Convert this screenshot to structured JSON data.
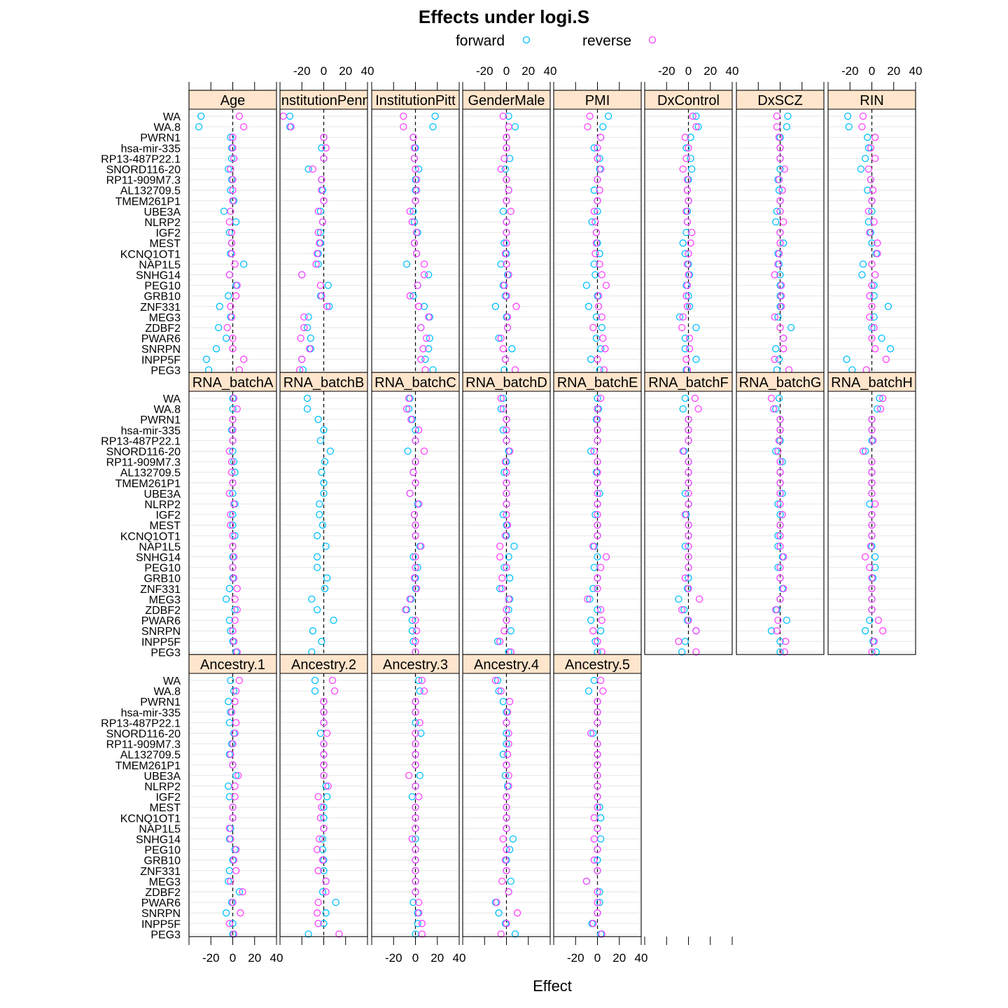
{
  "chart_data": {
    "type": "scatter",
    "title": "Effects under logi.S",
    "xlabel": "Effect",
    "ylabel": "",
    "xlim": [
      -40,
      40
    ],
    "xticks": [
      -20,
      0,
      20,
      40
    ],
    "reference_line_x": 0,
    "legend": {
      "placement": "top",
      "items": [
        {
          "name": "forward",
          "color": "#00bfff"
        },
        {
          "name": "reverse",
          "color": "#ff40ff"
        }
      ]
    },
    "grid": "horizontal lines per gene",
    "genes": [
      "WA",
      "WA.8",
      "PWRN1",
      "hsa-mir-335",
      "RP13-487P22.1",
      "SNORD116-20",
      "RP11-909M7.3",
      "AL132709.5",
      "TMEM261P1",
      "UBE3A",
      "NLRP2",
      "IGF2",
      "MEST",
      "KCNQ1OT1",
      "NAP1L5",
      "SNHG14",
      "PEG10",
      "GRB10",
      "ZNF331",
      "MEG3",
      "ZDBF2",
      "PWAR6",
      "SNRPN",
      "INPP5F",
      "PEG3"
    ],
    "panels": [
      {
        "name": "Age",
        "forward": [
          -29,
          -31,
          -2,
          -1,
          -1,
          -4,
          -1,
          -2,
          1,
          -8,
          3,
          -3,
          -1,
          -2,
          10,
          -3,
          3,
          -4,
          -12,
          -2,
          -13,
          -6,
          -15,
          -24,
          -22
        ],
        "reverse": [
          6,
          10,
          0,
          0,
          1,
          -2,
          0,
          0,
          0,
          -2,
          -3,
          -1,
          -1,
          -1,
          2,
          -3,
          4,
          3,
          -2,
          -1,
          -5,
          0,
          0,
          10,
          6
        ]
      },
      {
        "name": "InstitutionPenn",
        "forward": [
          -31,
          -31,
          0,
          -2,
          0,
          -14,
          -2,
          -1,
          0,
          -3,
          -1,
          -3,
          -3,
          -5,
          -5,
          -20,
          4,
          -3,
          5,
          -14,
          -15,
          -12,
          -12,
          -20,
          -19
        ],
        "reverse": [
          -37,
          -30,
          0,
          2,
          0,
          -10,
          -2,
          -2,
          0,
          -5,
          -1,
          -5,
          -4,
          -6,
          -7,
          -20,
          -3,
          -2,
          3,
          -18,
          -18,
          -21,
          -13,
          -20,
          -22
        ]
      },
      {
        "name": "InstitutionPitt",
        "forward": [
          18,
          16,
          -2,
          0,
          -1,
          3,
          0,
          0,
          0,
          -2,
          -1,
          2,
          -1,
          1,
          -8,
          12,
          2,
          -2,
          8,
          13,
          5,
          13,
          12,
          9,
          16
        ],
        "reverse": [
          -11,
          -11,
          -2,
          -1,
          -1,
          0,
          1,
          1,
          0,
          -5,
          -3,
          1,
          -1,
          1,
          8,
          8,
          2,
          -5,
          3,
          12,
          5,
          10,
          7,
          5,
          9
        ]
      },
      {
        "name": "GenderMale",
        "forward": [
          2,
          8,
          0,
          0,
          3,
          -1,
          0,
          2,
          0,
          -3,
          0,
          0,
          -2,
          0,
          -5,
          1,
          -3,
          -1,
          -10,
          0,
          1,
          -7,
          5,
          -1,
          -2
        ],
        "reverse": [
          -3,
          2,
          0,
          0,
          -2,
          -5,
          0,
          2,
          0,
          4,
          0,
          0,
          0,
          -1,
          0,
          2,
          -2,
          0,
          9,
          1,
          1,
          -5,
          -3,
          -1,
          8
        ]
      },
      {
        "name": "PMI",
        "forward": [
          10,
          5,
          3,
          -3,
          2,
          2,
          0,
          -3,
          0,
          0,
          -5,
          -1,
          0,
          2,
          -3,
          -2,
          -10,
          0,
          -8,
          -1,
          4,
          -1,
          3,
          -6,
          2
        ],
        "reverse": [
          -7,
          -9,
          3,
          0,
          0,
          3,
          0,
          2,
          0,
          -3,
          -2,
          -1,
          -1,
          -2,
          2,
          4,
          8,
          1,
          1,
          4,
          -4,
          5,
          7,
          0,
          6
        ]
      },
      {
        "name": "DxControl",
        "forward": [
          7,
          9,
          2,
          -2,
          2,
          3,
          0,
          -1,
          0,
          -1,
          -1,
          -2,
          -5,
          -3,
          0,
          1,
          -2,
          0,
          1,
          -8,
          7,
          -3,
          -3,
          7,
          -2
        ],
        "reverse": [
          4,
          7,
          -3,
          0,
          -2,
          -5,
          -1,
          -1,
          0,
          -2,
          -1,
          3,
          2,
          0,
          -1,
          0,
          -1,
          -2,
          -1,
          -5,
          -6,
          1,
          1,
          -2,
          -1
        ]
      },
      {
        "name": "DxSCZ",
        "forward": [
          7,
          6,
          0,
          0,
          0,
          0,
          -2,
          -1,
          0,
          -3,
          -4,
          0,
          3,
          -2,
          -1,
          0,
          0,
          0,
          0,
          -2,
          10,
          3,
          -4,
          -1,
          -3
        ],
        "reverse": [
          -3,
          -3,
          -1,
          0,
          0,
          4,
          -1,
          2,
          0,
          0,
          3,
          0,
          0,
          -1,
          -2,
          -5,
          1,
          1,
          1,
          -5,
          0,
          3,
          3,
          -5,
          8
        ]
      },
      {
        "name": "RIN",
        "forward": [
          -22,
          -21,
          -4,
          -3,
          -6,
          -10,
          -1,
          -4,
          0,
          0,
          -3,
          -1,
          0,
          4,
          -8,
          -9,
          2,
          2,
          15,
          2,
          0,
          9,
          17,
          -23,
          -18
        ],
        "reverse": [
          -8,
          -9,
          3,
          -1,
          3,
          -3,
          -1,
          1,
          0,
          -3,
          2,
          -2,
          5,
          5,
          0,
          3,
          0,
          -2,
          0,
          -2,
          2,
          0,
          3,
          13,
          -5
        ]
      },
      {
        "name": "RNA_batchA",
        "panel_label": "RNA_batchA",
        "forward": [
          0,
          0,
          0,
          -1,
          0,
          0,
          1,
          2,
          0,
          0,
          2,
          0,
          0,
          2,
          0,
          0,
          0,
          0,
          -3,
          -6,
          2,
          -3,
          -2,
          0,
          3
        ],
        "reverse": [
          1,
          4,
          0,
          0,
          0,
          -3,
          -1,
          -1,
          0,
          -3,
          1,
          -2,
          -2,
          0,
          0,
          1,
          0,
          1,
          4,
          2,
          4,
          2,
          0,
          1,
          4
        ]
      },
      {
        "name": "RNA_batchB",
        "panel_label": "RNA_batchB",
        "forward": [
          -15,
          -15,
          -5,
          0,
          -3,
          6,
          1,
          -2,
          0,
          0,
          -4,
          -4,
          -1,
          -6,
          2,
          -6,
          -6,
          3,
          1,
          -11,
          -6,
          9,
          -10,
          -2,
          -11
        ]
      },
      {
        "name": "RNA_batchC",
        "panel_label": "RNA_batchC",
        "forward": [
          -5,
          -6,
          -3,
          0,
          0,
          -7,
          0,
          -2,
          0,
          -5,
          2,
          -1,
          0,
          0,
          4,
          -2,
          2,
          0,
          0,
          -4,
          -8,
          -3,
          -3,
          -2,
          0
        ],
        "reverse": [
          -6,
          -8,
          -4,
          3,
          0,
          8,
          0,
          -2,
          0,
          -5,
          3,
          -1,
          0,
          0,
          5,
          0,
          0,
          -1,
          1,
          -5,
          -9,
          0,
          1,
          0,
          0
        ]
      },
      {
        "name": "RNA_batchD",
        "panel_label": "RNA_batchD",
        "forward": [
          -3,
          -5,
          0,
          -3,
          0,
          2,
          0,
          -2,
          0,
          0,
          0,
          -3,
          0,
          0,
          7,
          2,
          -2,
          3,
          -6,
          3,
          2,
          0,
          4,
          -8,
          2
        ],
        "reverse": [
          -5,
          -3,
          0,
          0,
          0,
          3,
          -1,
          0,
          0,
          0,
          0,
          0,
          1,
          -1,
          -6,
          -6,
          0,
          -4,
          -4,
          2,
          0,
          0,
          -2,
          -6,
          4
        ]
      },
      {
        "name": "RNA_batchE",
        "panel_label": "RNA_batchE",
        "forward": [
          0,
          1,
          -1,
          0,
          0,
          -6,
          0,
          -1,
          0,
          2,
          0,
          -2,
          0,
          0,
          -3,
          0,
          -3,
          0,
          -4,
          -7,
          0,
          -6,
          3,
          -2,
          0
        ],
        "reverse": [
          3,
          0,
          0,
          0,
          0,
          -3,
          0,
          0,
          0,
          0,
          0,
          0,
          0,
          0,
          -4,
          8,
          3,
          0,
          0,
          -9,
          3,
          4,
          -4,
          0,
          4
        ]
      },
      {
        "name": "RNA_batchF",
        "panel_label": "RNA_batchF",
        "forward": [
          -3,
          -5,
          0,
          0,
          0,
          -4,
          0,
          0,
          0,
          -3,
          0,
          -2,
          0,
          0,
          -3,
          0,
          0,
          0,
          -1,
          -9,
          -4,
          -1,
          7,
          -3,
          -6
        ],
        "reverse": [
          6,
          9,
          0,
          0,
          0,
          -5,
          0,
          0,
          0,
          0,
          0,
          -3,
          0,
          0,
          0,
          0,
          0,
          -3,
          0,
          10,
          -6,
          0,
          7,
          -9,
          7
        ]
      },
      {
        "name": "RNA_batchG",
        "panel_label": "RNA_batchG",
        "forward": [
          -1,
          -4,
          0,
          0,
          0,
          -4,
          2,
          0,
          0,
          2,
          -2,
          0,
          0,
          -2,
          -2,
          2,
          -2,
          0,
          2,
          0,
          -3,
          6,
          -8,
          0,
          0
        ],
        "reverse": [
          -8,
          -6,
          0,
          0,
          -1,
          -2,
          0,
          0,
          0,
          0,
          0,
          2,
          0,
          0,
          0,
          3,
          0,
          0,
          3,
          0,
          -4,
          -2,
          -3,
          5,
          4
        ]
      },
      {
        "name": "RNA_batchH",
        "panel_label": "RNA_batchH",
        "forward": [
          7,
          5,
          0,
          0,
          0,
          -6,
          0,
          0,
          0,
          0,
          -2,
          0,
          0,
          0,
          0,
          3,
          3,
          1,
          0,
          0,
          0,
          -2,
          -6,
          1,
          4
        ],
        "reverse": [
          10,
          8,
          0,
          0,
          1,
          -8,
          0,
          0,
          0,
          0,
          3,
          0,
          0,
          0,
          -1,
          -6,
          -2,
          0,
          0,
          0,
          0,
          6,
          10,
          2,
          0
        ]
      },
      {
        "name": "Ancestry.1",
        "forward": [
          -2,
          1,
          -4,
          -2,
          -3,
          1,
          -1,
          -3,
          0,
          3,
          -4,
          -3,
          0,
          0,
          -2,
          -3,
          2,
          0,
          -3,
          -4,
          6,
          -1,
          -6,
          0,
          0
        ],
        "reverse": [
          6,
          3,
          2,
          -1,
          3,
          2,
          0,
          -2,
          0,
          5,
          2,
          2,
          0,
          0,
          -3,
          -2,
          3,
          1,
          3,
          -2,
          9,
          0,
          7,
          -3,
          1
        ]
      },
      {
        "name": "Ancestry.2",
        "forward": [
          -8,
          -8,
          0,
          0,
          0,
          -3,
          0,
          0,
          0,
          0,
          2,
          3,
          0,
          0,
          0,
          -1,
          -1,
          0,
          0,
          2,
          -1,
          11,
          2,
          0,
          -14
        ],
        "reverse": [
          8,
          10,
          0,
          0,
          0,
          3,
          0,
          0,
          0,
          0,
          4,
          -5,
          -2,
          -3,
          0,
          -4,
          -6,
          -1,
          -5,
          2,
          2,
          -5,
          -6,
          -5,
          14
        ]
      },
      {
        "name": "Ancestry.3",
        "forward": [
          3,
          4,
          0,
          0,
          0,
          5,
          0,
          0,
          0,
          4,
          0,
          -3,
          0,
          0,
          0,
          0,
          0,
          0,
          0,
          0,
          0,
          -2,
          2,
          2,
          0
        ],
        "reverse": [
          6,
          8,
          0,
          0,
          4,
          0,
          0,
          0,
          0,
          -6,
          0,
          3,
          0,
          0,
          0,
          -3,
          0,
          0,
          0,
          0,
          0,
          3,
          3,
          6,
          6
        ]
      },
      {
        "name": "Ancestry.4",
        "forward": [
          -8,
          -7,
          -3,
          0,
          0,
          0,
          0,
          -3,
          0,
          -1,
          1,
          0,
          0,
          0,
          0,
          6,
          3,
          0,
          0,
          4,
          2,
          -10,
          -7,
          -1,
          8
        ],
        "reverse": [
          -10,
          -5,
          3,
          1,
          0,
          2,
          2,
          1,
          0,
          2,
          2,
          0,
          0,
          0,
          0,
          -3,
          0,
          -1,
          0,
          -4,
          2,
          -9,
          10,
          0,
          -5
        ]
      },
      {
        "name": "Ancestry.5",
        "forward": [
          -3,
          -8,
          0,
          0,
          0,
          -4,
          0,
          0,
          0,
          0,
          0,
          0,
          2,
          3,
          0,
          3,
          0,
          0,
          0,
          -10,
          2,
          2,
          0,
          -5,
          3
        ],
        "reverse": [
          3,
          5,
          0,
          0,
          0,
          -6,
          0,
          0,
          0,
          0,
          0,
          0,
          0,
          -3,
          0,
          -3,
          0,
          -3,
          0,
          -10,
          0,
          0,
          0,
          -4,
          4
        ]
      }
    ]
  }
}
